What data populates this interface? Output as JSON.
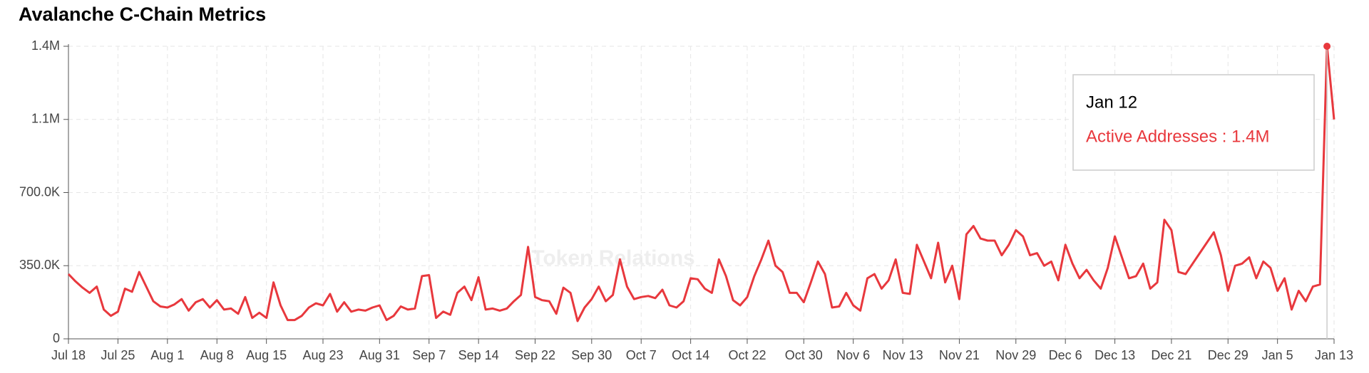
{
  "chart_data": {
    "type": "line",
    "title": "Avalanche C-Chain Metrics",
    "watermark": "Token Relations",
    "categories": [
      "Jul 18",
      "Jul 19",
      "Jul 20",
      "Jul 21",
      "Jul 22",
      "Jul 23",
      "Jul 24",
      "Jul 25",
      "Jul 26",
      "Jul 27",
      "Jul 28",
      "Jul 29",
      "Jul 30",
      "Jul 31",
      "Aug 1",
      "Aug 2",
      "Aug 3",
      "Aug 4",
      "Aug 5",
      "Aug 6",
      "Aug 7",
      "Aug 8",
      "Aug 9",
      "Aug 10",
      "Aug 11",
      "Aug 12",
      "Aug 13",
      "Aug 14",
      "Aug 15",
      "Aug 16",
      "Aug 17",
      "Aug 18",
      "Aug 19",
      "Aug 20",
      "Aug 21",
      "Aug 22",
      "Aug 23",
      "Aug 24",
      "Aug 25",
      "Aug 26",
      "Aug 27",
      "Aug 28",
      "Aug 29",
      "Aug 30",
      "Aug 31",
      "Sep 1",
      "Sep 2",
      "Sep 3",
      "Sep 4",
      "Sep 5",
      "Sep 6",
      "Sep 7",
      "Sep 8",
      "Sep 9",
      "Sep 10",
      "Sep 11",
      "Sep 12",
      "Sep 13",
      "Sep 14",
      "Sep 15",
      "Sep 16",
      "Sep 17",
      "Sep 18",
      "Sep 19",
      "Sep 20",
      "Sep 21",
      "Sep 22",
      "Sep 23",
      "Sep 24",
      "Sep 25",
      "Sep 26",
      "Sep 27",
      "Sep 28",
      "Sep 29",
      "Sep 30",
      "Oct 1",
      "Oct 2",
      "Oct 3",
      "Oct 4",
      "Oct 5",
      "Oct 6",
      "Oct 7",
      "Oct 8",
      "Oct 9",
      "Oct 10",
      "Oct 11",
      "Oct 12",
      "Oct 13",
      "Oct 14",
      "Oct 15",
      "Oct 16",
      "Oct 17",
      "Oct 18",
      "Oct 19",
      "Oct 20",
      "Oct 21",
      "Oct 22",
      "Oct 23",
      "Oct 24",
      "Oct 25",
      "Oct 26",
      "Oct 27",
      "Oct 28",
      "Oct 29",
      "Oct 30",
      "Oct 31",
      "Nov 1",
      "Nov 2",
      "Nov 3",
      "Nov 4",
      "Nov 5",
      "Nov 6",
      "Nov 7",
      "Nov 8",
      "Nov 9",
      "Nov 10",
      "Nov 11",
      "Nov 12",
      "Nov 13",
      "Nov 14",
      "Nov 15",
      "Nov 16",
      "Nov 17",
      "Nov 18",
      "Nov 19",
      "Nov 20",
      "Nov 21",
      "Nov 22",
      "Nov 23",
      "Nov 24",
      "Nov 25",
      "Nov 26",
      "Nov 27",
      "Nov 28",
      "Nov 29",
      "Nov 30",
      "Dec 1",
      "Dec 2",
      "Dec 3",
      "Dec 4",
      "Dec 5",
      "Dec 6",
      "Dec 7",
      "Dec 8",
      "Dec 9",
      "Dec 10",
      "Dec 11",
      "Dec 12",
      "Dec 13",
      "Dec 14",
      "Dec 15",
      "Dec 16",
      "Dec 17",
      "Dec 18",
      "Dec 19",
      "Dec 20",
      "Dec 21",
      "Dec 22",
      "Dec 23",
      "Dec 24",
      "Dec 25",
      "Dec 26",
      "Dec 27",
      "Dec 28",
      "Dec 29",
      "Dec 30",
      "Dec 31",
      "Jan 1",
      "Jan 2",
      "Jan 3",
      "Jan 4",
      "Jan 5",
      "Jan 6",
      "Jan 7",
      "Jan 8",
      "Jan 9",
      "Jan 10",
      "Jan 11",
      "Jan 12",
      "Jan 13"
    ],
    "xticks": [
      "Jul 18",
      "Jul 25",
      "Aug 1",
      "Aug 8",
      "Aug 15",
      "Aug 23",
      "Aug 31",
      "Sep 7",
      "Sep 14",
      "Sep 22",
      "Sep 30",
      "Oct 7",
      "Oct 14",
      "Oct 22",
      "Oct 30",
      "Nov 6",
      "Nov 13",
      "Nov 21",
      "Nov 29",
      "Dec 6",
      "Dec 13",
      "Dec 21",
      "Dec 29",
      "Jan 5",
      "Jan 13"
    ],
    "series": [
      {
        "name": "Active Addresses",
        "color": "#e8383d",
        "values": [
          310000,
          275000,
          245000,
          220000,
          250000,
          140000,
          110000,
          130000,
          240000,
          225000,
          320000,
          250000,
          180000,
          155000,
          150000,
          165000,
          190000,
          135000,
          175000,
          190000,
          150000,
          185000,
          140000,
          145000,
          120000,
          200000,
          100000,
          125000,
          100000,
          270000,
          160000,
          90000,
          90000,
          110000,
          150000,
          170000,
          160000,
          215000,
          130000,
          175000,
          130000,
          140000,
          135000,
          150000,
          160000,
          90000,
          110000,
          155000,
          140000,
          145000,
          300000,
          305000,
          100000,
          130000,
          115000,
          220000,
          250000,
          185000,
          295000,
          140000,
          145000,
          135000,
          145000,
          180000,
          210000,
          440000,
          200000,
          185000,
          180000,
          120000,
          245000,
          220000,
          85000,
          150000,
          190000,
          250000,
          180000,
          210000,
          380000,
          250000,
          190000,
          200000,
          205000,
          195000,
          235000,
          160000,
          150000,
          180000,
          290000,
          285000,
          240000,
          220000,
          380000,
          300000,
          185000,
          160000,
          200000,
          300000,
          380000,
          470000,
          350000,
          320000,
          220000,
          220000,
          175000,
          270000,
          370000,
          310000,
          150000,
          155000,
          220000,
          160000,
          135000,
          290000,
          310000,
          240000,
          280000,
          380000,
          220000,
          215000,
          450000,
          370000,
          290000,
          460000,
          270000,
          350000,
          190000,
          500000,
          540000,
          480000,
          470000,
          470000,
          400000,
          450000,
          520000,
          490000,
          400000,
          410000,
          350000,
          370000,
          280000,
          450000,
          360000,
          290000,
          330000,
          280000,
          240000,
          340000,
          490000,
          390000,
          290000,
          300000,
          360000,
          240000,
          270000,
          570000,
          520000,
          320000,
          310000,
          360000,
          410000,
          460000,
          510000,
          400000,
          230000,
          350000,
          360000,
          390000,
          290000,
          370000,
          340000,
          230000,
          290000,
          140000,
          230000,
          180000,
          250000,
          260000,
          1400000,
          1050000
        ]
      }
    ],
    "ylim": [
      0,
      1400000
    ],
    "yticks": [
      0,
      {
        "value": 350000,
        "label": "350.0K"
      },
      {
        "value": 700000,
        "label": "700.0K"
      },
      {
        "value": 1050000,
        "label": "1.1M"
      },
      {
        "value": 1400000,
        "label": "1.4M"
      }
    ],
    "grid": true,
    "tooltip": {
      "title": "Jan 12",
      "text": "Active Addresses : 1.4M",
      "index": 178
    }
  }
}
